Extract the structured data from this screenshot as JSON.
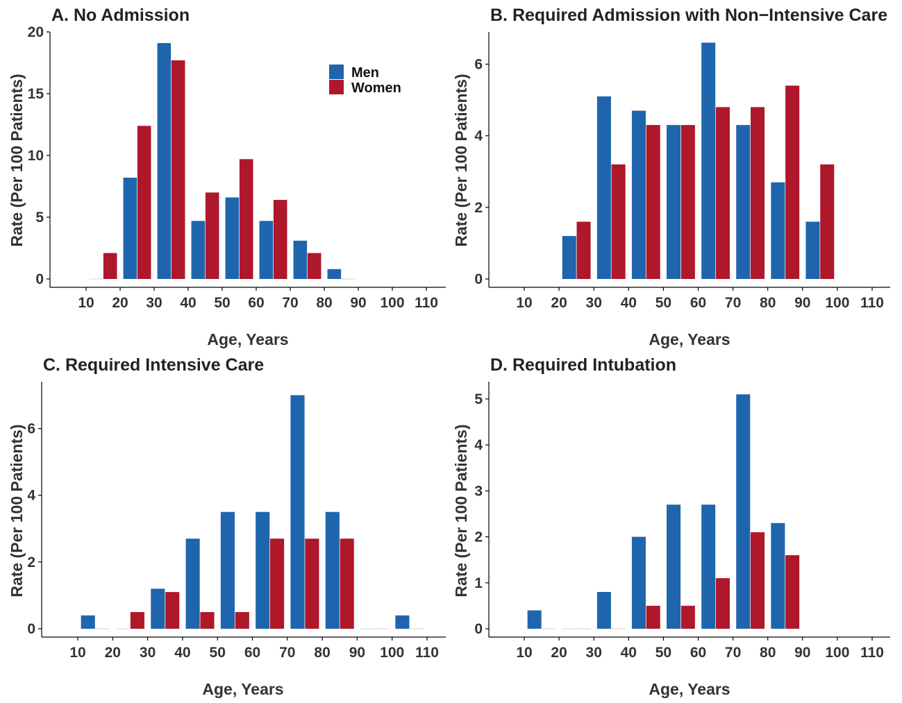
{
  "colors": {
    "men": "#1f65ad",
    "women": "#af172b"
  },
  "legend": {
    "placement": "top-right of panel A",
    "items": [
      {
        "label": "Men",
        "color": "#1f65ad"
      },
      {
        "label": "Women",
        "color": "#af172b"
      }
    ]
  },
  "chart_data": [
    {
      "type": "bar",
      "title": "A. No Admission",
      "xlabel": "Age, Years",
      "ylabel": "Rate (Per 100 Patients)",
      "x_ticks": [
        "10",
        "20",
        "30",
        "40",
        "50",
        "60",
        "70",
        "80",
        "90",
        "100",
        "110"
      ],
      "y_ticks": [
        0,
        5,
        10,
        15,
        20
      ],
      "ylim": [
        0,
        20
      ],
      "x_range": [
        0,
        115
      ],
      "grid": false,
      "categories": [
        10,
        20,
        30,
        40,
        50,
        60,
        70,
        80
      ],
      "series": [
        {
          "name": "Men",
          "values": [
            0,
            8.2,
            19.1,
            4.7,
            6.6,
            4.7,
            3.1,
            0.8
          ]
        },
        {
          "name": "Women",
          "values": [
            2.1,
            12.4,
            17.7,
            7.0,
            9.7,
            6.4,
            2.1,
            0
          ]
        }
      ]
    },
    {
      "type": "bar",
      "title": "B. Required Admission with Non−Intensive Care",
      "xlabel": "Age, Years",
      "ylabel": "Rate (Per 100 Patients)",
      "x_ticks": [
        "10",
        "20",
        "30",
        "40",
        "50",
        "60",
        "70",
        "80",
        "90",
        "100",
        "110"
      ],
      "y_ticks": [
        0,
        2,
        4,
        6
      ],
      "ylim": [
        0,
        6.9
      ],
      "x_range": [
        0,
        115
      ],
      "grid": false,
      "categories": [
        20,
        30,
        40,
        50,
        60,
        70,
        80,
        90
      ],
      "series": [
        {
          "name": "Men",
          "values": [
            1.2,
            5.1,
            4.7,
            4.3,
            6.6,
            4.3,
            2.7,
            1.6
          ]
        },
        {
          "name": "Women",
          "values": [
            1.6,
            3.2,
            4.3,
            4.3,
            4.8,
            4.8,
            5.4,
            3.2
          ]
        }
      ]
    },
    {
      "type": "bar",
      "title": "C. Required Intensive Care",
      "xlabel": "Age, Years",
      "ylabel": "Rate (Per 100 Patients)",
      "x_ticks": [
        "10",
        "20",
        "30",
        "40",
        "50",
        "60",
        "70",
        "80",
        "90",
        "100",
        "110"
      ],
      "y_ticks": [
        0,
        2,
        4,
        6
      ],
      "ylim": [
        0,
        7.3
      ],
      "x_range": [
        0,
        115
      ],
      "grid": false,
      "categories": [
        10,
        20,
        30,
        40,
        50,
        60,
        70,
        80,
        90,
        100
      ],
      "series": [
        {
          "name": "Men",
          "values": [
            0.4,
            0,
            1.2,
            2.7,
            3.5,
            3.5,
            7.0,
            3.5,
            0,
            0.4
          ]
        },
        {
          "name": "Women",
          "values": [
            0,
            0.5,
            1.1,
            0.5,
            0.5,
            2.7,
            2.7,
            2.7,
            0,
            0
          ]
        }
      ]
    },
    {
      "type": "bar",
      "title": "D. Required Intubation",
      "xlabel": "Age, Years",
      "ylabel": "Rate (Per 100 Patients)",
      "x_ticks": [
        "10",
        "20",
        "30",
        "40",
        "50",
        "60",
        "70",
        "80",
        "90",
        "100",
        "110"
      ],
      "y_ticks": [
        0,
        1,
        2,
        3,
        4,
        5
      ],
      "ylim": [
        0,
        5.3
      ],
      "x_range": [
        0,
        115
      ],
      "grid": false,
      "categories": [
        10,
        20,
        30,
        40,
        50,
        60,
        70,
        80
      ],
      "series": [
        {
          "name": "Men",
          "values": [
            0.4,
            0,
            0.8,
            2.0,
            2.7,
            2.7,
            5.1,
            2.3
          ]
        },
        {
          "name": "Women",
          "values": [
            0,
            0,
            0,
            0.5,
            0.5,
            1.1,
            2.1,
            1.6
          ]
        }
      ]
    }
  ]
}
